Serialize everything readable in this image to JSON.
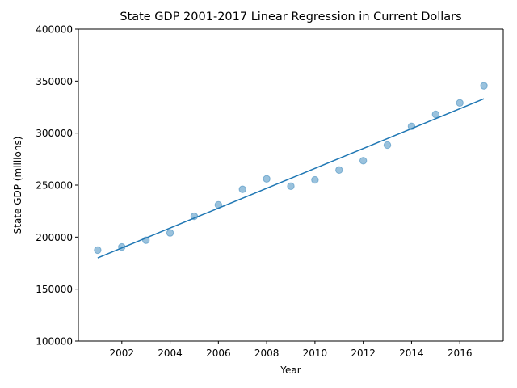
{
  "chart_data": {
    "type": "scatter",
    "title": "State GDP 2001-2017 Linear Regression in Current Dollars",
    "xlabel": "Year",
    "ylabel": "State GDP (millions)",
    "xlim": [
      2000.2,
      2017.8
    ],
    "ylim": [
      100000,
      400000
    ],
    "x_ticks": [
      2002,
      2004,
      2006,
      2008,
      2010,
      2012,
      2014,
      2016
    ],
    "y_ticks": [
      100000,
      150000,
      200000,
      250000,
      300000,
      350000,
      400000
    ],
    "grid": false,
    "legend": "none",
    "series": [
      {
        "kind": "scatter",
        "x": [
          2001,
          2002,
          2003,
          2004,
          2005,
          2006,
          2007,
          2008,
          2009,
          2010,
          2011,
          2012,
          2013,
          2014,
          2015,
          2016,
          2017
        ],
        "y": [
          187500,
          190500,
          197000,
          204000,
          220000,
          231000,
          246000,
          256000,
          249000,
          255000,
          264500,
          273500,
          288500,
          306500,
          318000,
          329000,
          345500
        ],
        "color": "#1f77b4",
        "alpha": 0.45
      },
      {
        "kind": "regression-line",
        "x": [
          2001,
          2017
        ],
        "y": [
          180000,
          333000
        ],
        "color": "#1f77b4"
      }
    ]
  }
}
